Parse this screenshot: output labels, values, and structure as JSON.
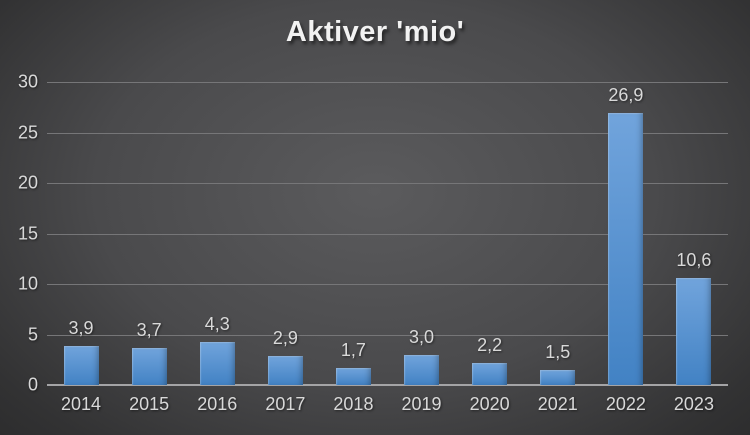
{
  "chart_data": {
    "type": "bar",
    "title": "Aktiver 'mio'",
    "categories": [
      "2014",
      "2015",
      "2016",
      "2017",
      "2018",
      "2019",
      "2020",
      "2021",
      "2022",
      "2023"
    ],
    "values": [
      3.9,
      3.7,
      4.3,
      2.9,
      1.7,
      3.0,
      2.2,
      1.5,
      26.9,
      10.6
    ],
    "value_labels": [
      "3,9",
      "3,7",
      "4,3",
      "2,9",
      "1,7",
      "3,0",
      "2,2",
      "1,5",
      "26,9",
      "10,6"
    ],
    "xlabel": "",
    "ylabel": "",
    "ylim": [
      0,
      30
    ],
    "yticks": [
      0,
      5,
      10,
      15,
      20,
      25,
      30
    ],
    "ytick_labels": [
      "0",
      "5",
      "10",
      "15",
      "20",
      "25",
      "30"
    ],
    "grid": true,
    "legend": "none",
    "colors": {
      "bar_top": "#71a4dc",
      "bar_bottom": "#4282c4",
      "background_center": "#5b5b5d",
      "background_edge": "#242425",
      "gridline": "#767678",
      "axis_line": "#a4a4a6",
      "label": "#d9d9d9",
      "title": "#f2f2f2"
    }
  }
}
